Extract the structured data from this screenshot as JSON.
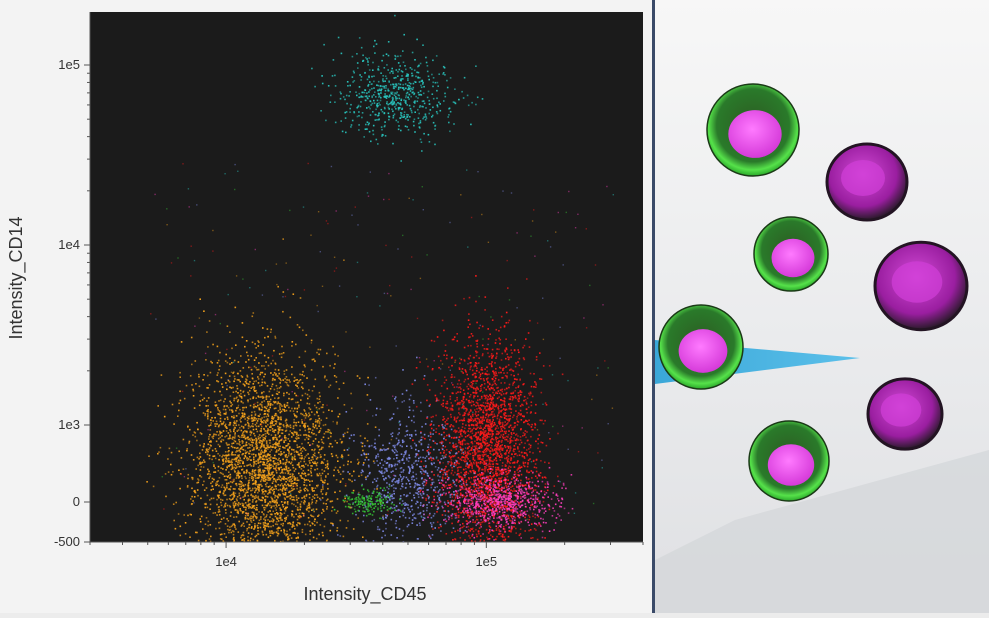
{
  "chart_data": {
    "type": "scatter",
    "xlabel": "Intensity_CD45",
    "ylabel": "Intensity_CD14",
    "x_scale": "log",
    "y_scale": "biexponential",
    "xlim": [
      3000,
      400000
    ],
    "ylim": [
      -500,
      170000
    ],
    "x_ticks": [
      {
        "value": 10000,
        "label": "1e4"
      },
      {
        "value": 100000,
        "label": "1e5"
      }
    ],
    "y_ticks": [
      {
        "value": -500,
        "label": "-500"
      },
      {
        "value": 0,
        "label": "0"
      },
      {
        "value": 1000,
        "label": "1e3"
      },
      {
        "value": 10000,
        "label": "1e4"
      },
      {
        "value": 100000,
        "label": "1e5"
      }
    ],
    "background": "#1b1b1b",
    "series": [
      {
        "color": "#f5a21b",
        "center_x": 14000,
        "center_y": 500,
        "count": 3200
      },
      {
        "color": "#ff1a1a",
        "center_x": 100000,
        "center_y": 700,
        "count": 2600
      },
      {
        "color": "#ff3fbf",
        "center_x": 110000,
        "center_y": 20,
        "count": 700
      },
      {
        "color": "#7e8ae6",
        "center_x": 50000,
        "center_y": 300,
        "count": 700
      },
      {
        "color": "#29c7c0",
        "center_x": 45000,
        "center_y": 70000,
        "count": 600
      },
      {
        "color": "#35c635",
        "center_x": 35000,
        "center_y": 10,
        "count": 160
      }
    ]
  },
  "cells": [
    {
      "type": "green-membrane",
      "color": "#39d839",
      "nucleus": "#e04ee6"
    },
    {
      "type": "magenta-nucleus",
      "color": "#b522b9"
    },
    {
      "type": "green-membrane",
      "color": "#39d839",
      "nucleus": "#e04ee6"
    },
    {
      "type": "magenta-nucleus",
      "color": "#b522b9"
    },
    {
      "type": "green-membrane",
      "color": "#39d839",
      "nucleus": "#e04ee6"
    },
    {
      "type": "magenta-nucleus",
      "color": "#b522b9"
    },
    {
      "type": "green-membrane",
      "color": "#39d839",
      "nucleus": "#e04ee6"
    },
    {
      "type": "magenta-nucleus",
      "color": "#b522b9"
    }
  ],
  "laser_color": "#3aa7d8"
}
